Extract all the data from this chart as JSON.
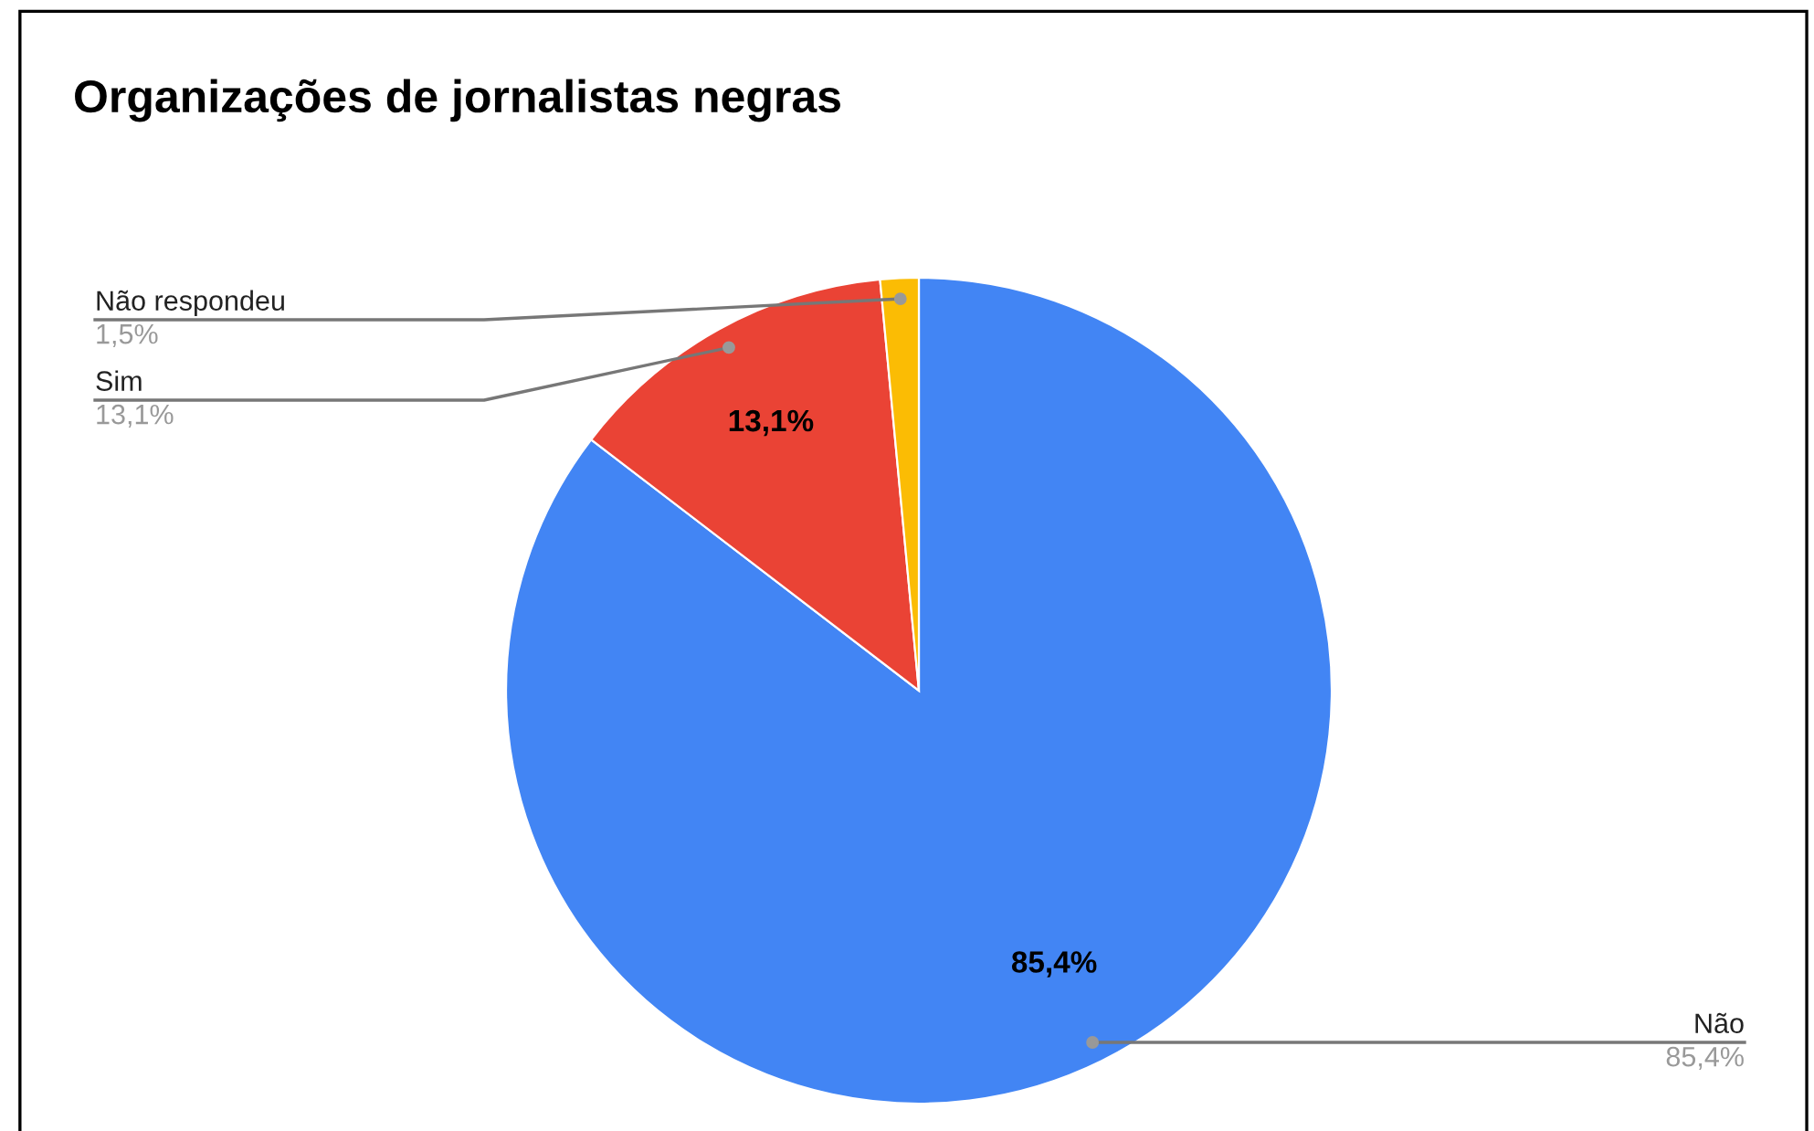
{
  "chart_data": {
    "type": "pie",
    "title": "Organizações de jornalistas negras",
    "categories": [
      "Não",
      "Sim",
      "Não respondeu"
    ],
    "values": [
      85.4,
      13.1,
      1.5
    ],
    "colors": [
      "#4285f4",
      "#ea4335",
      "#fbbc04"
    ],
    "value_labels": [
      "85,4%",
      "13,1%",
      "1,5%"
    ],
    "legend": false
  }
}
